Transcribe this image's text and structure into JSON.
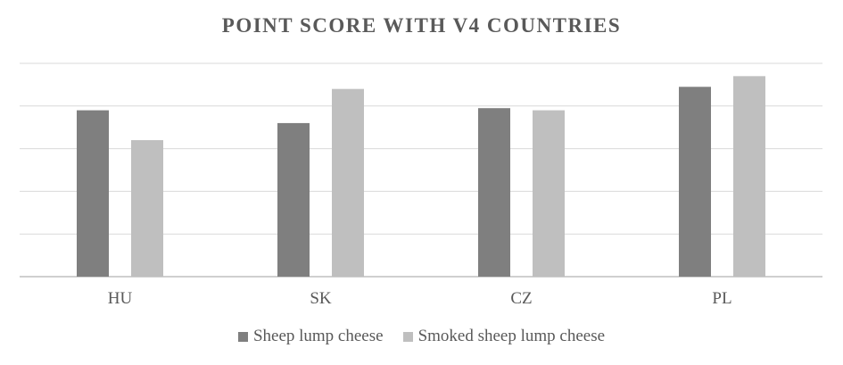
{
  "chart_data": {
    "type": "bar",
    "title": "POINT SCORE WITH V4 COUNTRIES",
    "categories": [
      "HU",
      "SK",
      "CZ",
      "PL"
    ],
    "series": [
      {
        "name": "Sheep lump cheese",
        "color": "#7f7f7f",
        "values": [
          3.9,
          3.6,
          3.95,
          4.45
        ]
      },
      {
        "name": "Smoked sheep lump cheese",
        "color": "#bfbfbf",
        "values": [
          3.2,
          4.4,
          3.9,
          4.7
        ]
      }
    ],
    "ylim": [
      0,
      5
    ],
    "gridlines": [
      0,
      1,
      2,
      3,
      4,
      5
    ],
    "grid": true,
    "legend_position": "bottom"
  }
}
